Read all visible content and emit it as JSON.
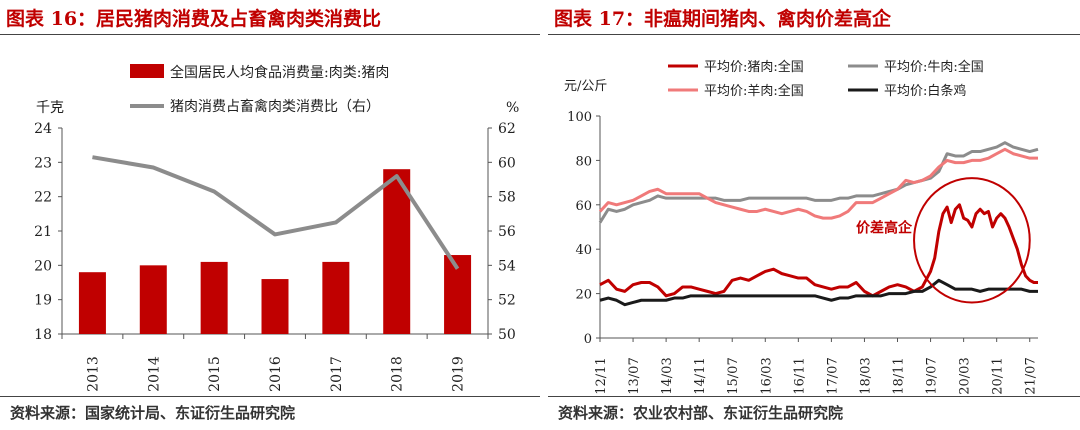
{
  "charts": [
    {
      "title": "图表 16：居民猪肉消费及占畜禽肉类消费比",
      "source": "资料来源：国家统计局、东证衍生品研究院",
      "chart_data": {
        "type": "bar+line",
        "categories": [
          "2013",
          "2014",
          "2015",
          "2016",
          "2017",
          "2018",
          "2019"
        ],
        "series": [
          {
            "name": "全国居民人均食品消费量:肉类:猪肉",
            "kind": "bar",
            "axis": "left",
            "color": "#c00000",
            "values": [
              19.8,
              20.0,
              20.1,
              19.6,
              20.1,
              22.8,
              20.3
            ]
          },
          {
            "name": "猪肉消费占畜禽肉类消费比（右）",
            "kind": "line",
            "axis": "right",
            "color": "#8c8c8c",
            "values": [
              60.3,
              59.7,
              58.3,
              55.8,
              56.5,
              59.2,
              53.8
            ]
          }
        ],
        "ylabel_left": "千克",
        "ylim_left": [
          18,
          24
        ],
        "yticks_left": [
          18,
          19,
          20,
          21,
          22,
          23,
          24
        ],
        "ylabel_right": "%",
        "ylim_right": [
          50,
          62
        ],
        "yticks_right": [
          50,
          52,
          54,
          56,
          58,
          60,
          62
        ],
        "legend": "top-center",
        "grid": false
      }
    },
    {
      "title": "图表 17：非瘟期间猪肉、禽肉价差高企",
      "source": "资料来源：农业农村部、东证衍生品研究院",
      "chart_data": {
        "type": "line",
        "ylabel": "元/公斤",
        "ylim": [
          0,
          100
        ],
        "yticks": [
          0,
          20,
          40,
          60,
          80,
          100
        ],
        "x_tick_labels": [
          "12/11",
          "13/07",
          "14/03",
          "14/11",
          "15/07",
          "16/03",
          "16/11",
          "17/07",
          "18/03",
          "18/11",
          "19/07",
          "20/03",
          "20/11",
          "21/07"
        ],
        "x_range": [
          "2012-11",
          "2021-09"
        ],
        "legend": "top",
        "annotation": {
          "text": "价差高企",
          "color": "#c00000",
          "ellipse_center": [
            "2020-05",
            44
          ],
          "ellipse_rx_months": 14,
          "ellipse_ry": 28
        },
        "series": [
          {
            "name": "平均价:猪肉:全国",
            "color": "#c00000",
            "x": [
              "2012-11",
              "2013-01",
              "2013-03",
              "2013-05",
              "2013-07",
              "2013-09",
              "2013-11",
              "2014-01",
              "2014-03",
              "2014-05",
              "2014-07",
              "2014-09",
              "2014-11",
              "2015-01",
              "2015-03",
              "2015-05",
              "2015-07",
              "2015-09",
              "2015-11",
              "2016-01",
              "2016-03",
              "2016-05",
              "2016-07",
              "2016-09",
              "2016-11",
              "2017-01",
              "2017-03",
              "2017-05",
              "2017-07",
              "2017-09",
              "2017-11",
              "2018-01",
              "2018-03",
              "2018-05",
              "2018-07",
              "2018-09",
              "2018-11",
              "2019-01",
              "2019-03",
              "2019-05",
              "2019-07",
              "2019-08",
              "2019-09",
              "2019-10",
              "2019-11",
              "2019-12",
              "2020-01",
              "2020-02",
              "2020-03",
              "2020-04",
              "2020-05",
              "2020-06",
              "2020-07",
              "2020-08",
              "2020-09",
              "2020-10",
              "2020-11",
              "2020-12",
              "2021-01",
              "2021-02",
              "2021-03",
              "2021-04",
              "2021-05",
              "2021-06",
              "2021-07",
              "2021-08",
              "2021-09"
            ],
            "y": [
              24,
              26,
              22,
              21,
              24,
              25,
              25,
              23,
              19,
              20,
              23,
              23,
              22,
              21,
              20,
              21,
              26,
              27,
              26,
              28,
              30,
              31,
              29,
              28,
              27,
              27,
              24,
              23,
              22,
              23,
              23,
              25,
              21,
              19,
              21,
              23,
              24,
              23,
              21,
              23,
              30,
              36,
              48,
              56,
              59,
              52,
              58,
              60,
              54,
              53,
              50,
              56,
              58,
              56,
              57,
              50,
              54,
              56,
              54,
              50,
              45,
              40,
              33,
              28,
              26,
              25,
              25
            ]
          },
          {
            "name": "平均价:牛肉:全国",
            "color": "#8c8c8c",
            "x": [
              "2012-11",
              "2013-01",
              "2013-03",
              "2013-05",
              "2013-07",
              "2013-09",
              "2013-11",
              "2014-01",
              "2014-03",
              "2014-05",
              "2014-07",
              "2014-09",
              "2014-11",
              "2015-01",
              "2015-03",
              "2015-05",
              "2015-07",
              "2015-09",
              "2015-11",
              "2016-01",
              "2016-03",
              "2016-05",
              "2016-07",
              "2016-09",
              "2016-11",
              "2017-01",
              "2017-03",
              "2017-05",
              "2017-07",
              "2017-09",
              "2017-11",
              "2018-01",
              "2018-03",
              "2018-05",
              "2018-07",
              "2018-09",
              "2018-11",
              "2019-01",
              "2019-03",
              "2019-05",
              "2019-07",
              "2019-09",
              "2019-11",
              "2020-01",
              "2020-03",
              "2020-05",
              "2020-07",
              "2020-09",
              "2020-11",
              "2021-01",
              "2021-03",
              "2021-05",
              "2021-07",
              "2021-09"
            ],
            "y": [
              52,
              58,
              57,
              58,
              60,
              61,
              62,
              64,
              63,
              63,
              63,
              63,
              63,
              63,
              63,
              62,
              62,
              62,
              63,
              63,
              63,
              63,
              63,
              63,
              63,
              63,
              62,
              62,
              62,
              63,
              63,
              64,
              64,
              64,
              65,
              66,
              67,
              69,
              70,
              71,
              72,
              75,
              83,
              82,
              82,
              84,
              84,
              85,
              86,
              88,
              86,
              85,
              84,
              85
            ]
          },
          {
            "name": "平均价:羊肉:全国",
            "color": "#f07a7a",
            "x": [
              "2012-11",
              "2013-01",
              "2013-03",
              "2013-05",
              "2013-07",
              "2013-09",
              "2013-11",
              "2014-01",
              "2014-03",
              "2014-05",
              "2014-07",
              "2014-09",
              "2014-11",
              "2015-01",
              "2015-03",
              "2015-05",
              "2015-07",
              "2015-09",
              "2015-11",
              "2016-01",
              "2016-03",
              "2016-05",
              "2016-07",
              "2016-09",
              "2016-11",
              "2017-01",
              "2017-03",
              "2017-05",
              "2017-07",
              "2017-09",
              "2017-11",
              "2018-01",
              "2018-03",
              "2018-05",
              "2018-07",
              "2018-09",
              "2018-11",
              "2019-01",
              "2019-03",
              "2019-05",
              "2019-07",
              "2019-09",
              "2019-11",
              "2020-01",
              "2020-03",
              "2020-05",
              "2020-07",
              "2020-09",
              "2020-11",
              "2021-01",
              "2021-03",
              "2021-05",
              "2021-07",
              "2021-09"
            ],
            "y": [
              57,
              61,
              60,
              61,
              62,
              64,
              66,
              67,
              65,
              65,
              65,
              65,
              65,
              63,
              61,
              60,
              59,
              58,
              57,
              57,
              58,
              57,
              56,
              57,
              58,
              57,
              55,
              54,
              54,
              55,
              57,
              61,
              61,
              61,
              63,
              65,
              67,
              71,
              70,
              71,
              73,
              77,
              80,
              79,
              79,
              80,
              80,
              81,
              83,
              85,
              83,
              82,
              81,
              81
            ]
          },
          {
            "name": "平均价:白条鸡",
            "color": "#1a1a1a",
            "x": [
              "2012-11",
              "2013-01",
              "2013-03",
              "2013-05",
              "2013-07",
              "2013-09",
              "2013-11",
              "2014-01",
              "2014-03",
              "2014-05",
              "2014-07",
              "2014-09",
              "2014-11",
              "2015-01",
              "2015-03",
              "2015-05",
              "2015-07",
              "2015-09",
              "2015-11",
              "2016-01",
              "2016-03",
              "2016-05",
              "2016-07",
              "2016-09",
              "2016-11",
              "2017-01",
              "2017-03",
              "2017-05",
              "2017-07",
              "2017-09",
              "2017-11",
              "2018-01",
              "2018-03",
              "2018-05",
              "2018-07",
              "2018-09",
              "2018-11",
              "2019-01",
              "2019-03",
              "2019-05",
              "2019-07",
              "2019-09",
              "2019-11",
              "2020-01",
              "2020-03",
              "2020-05",
              "2020-07",
              "2020-09",
              "2020-11",
              "2021-01",
              "2021-03",
              "2021-05",
              "2021-07",
              "2021-09"
            ],
            "y": [
              17,
              18,
              17,
              15,
              16,
              17,
              17,
              17,
              17,
              18,
              18,
              19,
              19,
              19,
              19,
              19,
              19,
              19,
              19,
              19,
              19,
              19,
              19,
              19,
              19,
              19,
              19,
              18,
              17,
              18,
              18,
              19,
              19,
              19,
              19,
              20,
              20,
              20,
              21,
              21,
              23,
              26,
              24,
              22,
              22,
              22,
              21,
              22,
              22,
              22,
              22,
              22,
              21,
              21
            ]
          }
        ]
      }
    }
  ]
}
